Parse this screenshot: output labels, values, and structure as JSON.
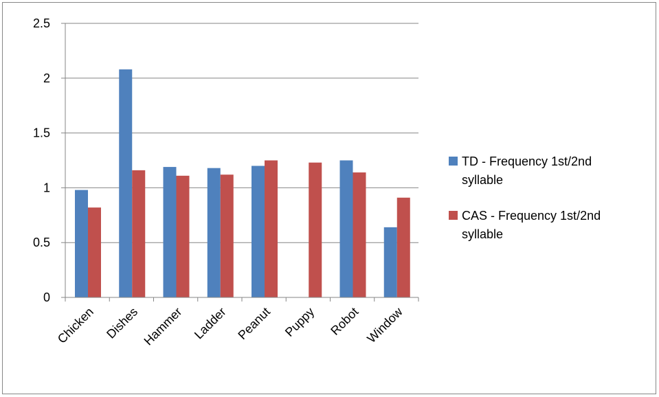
{
  "chart_data": {
    "type": "bar",
    "title": "",
    "xlabel": "",
    "ylabel": "",
    "categories": [
      "Chicken",
      "Dishes",
      "Hammer",
      "Ladder",
      "Peanut",
      "Puppy",
      "Robot",
      "Window"
    ],
    "series": [
      {
        "name": "TD - Frequency 1st/2nd syllable",
        "color": "#4F81BD",
        "values": [
          0.98,
          2.08,
          1.19,
          1.18,
          1.2,
          null,
          1.25,
          0.64
        ]
      },
      {
        "name": "CAS - Frequency 1st/2nd syllable",
        "color": "#C0504D",
        "values": [
          0.82,
          1.16,
          1.11,
          1.12,
          1.25,
          1.23,
          1.14,
          0.91
        ]
      }
    ],
    "ylim": [
      0,
      2.5
    ],
    "yticks": [
      0,
      0.5,
      1,
      1.5,
      2,
      2.5
    ],
    "ytick_labels": [
      "0",
      "0.5",
      "1",
      "1.5",
      "2",
      "2.5"
    ],
    "grid": true,
    "legend": "right",
    "gridline_color": "#868686",
    "axis_color": "#868686"
  }
}
